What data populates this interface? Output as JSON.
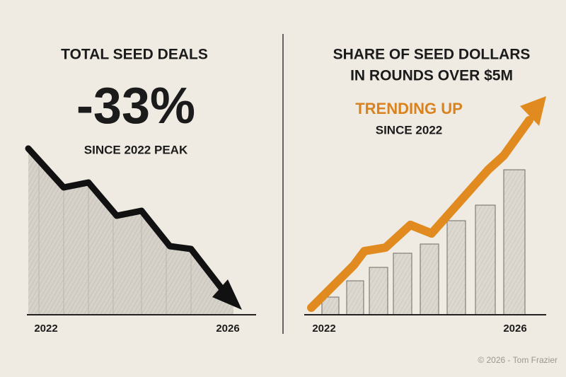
{
  "left": {
    "title": "TOTAL SEED DEALS",
    "headline": "-33%",
    "subtitle": "SINCE 2022 PEAK",
    "x_start": "2022",
    "x_end": "2026"
  },
  "right": {
    "title_lines": [
      "SHARE OF SEED DOLLARS",
      "IN ROUNDS OVER $5M"
    ],
    "headline": "TRENDING UP",
    "subtitle": "SINCE 2022",
    "x_start": "2022",
    "x_end": "2026"
  },
  "footer": "© 2026 - Tom Frazier"
}
